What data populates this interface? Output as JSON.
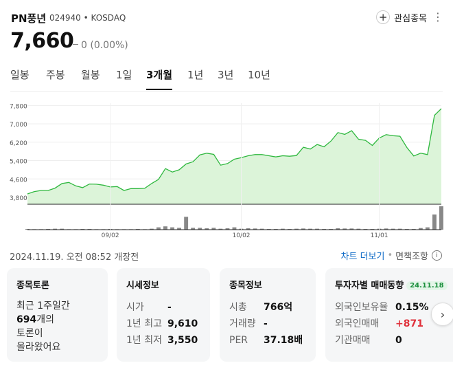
{
  "header": {
    "name": "PN풍년",
    "code_market": "024940 • KOSDAQ",
    "watch_label": "관심종목",
    "price": "7,660",
    "change": "0 (0.00%)"
  },
  "tabs": [
    {
      "label": "일봉"
    },
    {
      "label": "주봉"
    },
    {
      "label": "월봉"
    },
    {
      "label": "1일"
    },
    {
      "label": "3개월",
      "active": true
    },
    {
      "label": "1년"
    },
    {
      "label": "3년"
    },
    {
      "label": "10년"
    }
  ],
  "chart_data": {
    "type": "area",
    "y_ticks": [
      "7,800",
      "7,000",
      "6,200",
      "5,400",
      "4,600",
      "3,800"
    ],
    "x_ticks": [
      "09/02",
      "10/02",
      "11/01"
    ],
    "ylim": [
      3500,
      7900
    ],
    "price": [
      3950,
      4050,
      4100,
      4100,
      4200,
      4400,
      4450,
      4300,
      4220,
      4380,
      4370,
      4330,
      4250,
      4270,
      4100,
      4180,
      4180,
      4190,
      4400,
      4580,
      5050,
      4900,
      5000,
      5250,
      5350,
      5650,
      5720,
      5670,
      5200,
      5270,
      5460,
      5530,
      5610,
      5660,
      5660,
      5610,
      5560,
      5610,
      5590,
      5620,
      5980,
      5900,
      6100,
      6000,
      6250,
      6620,
      6540,
      6700,
      6330,
      6280,
      6060,
      6380,
      6530,
      6480,
      6460,
      5970,
      5600,
      5720,
      5660,
      7370,
      7660
    ],
    "volume": [
      3,
      2,
      2,
      3,
      4,
      4,
      2,
      2,
      3,
      3,
      2,
      2,
      3,
      2,
      2,
      2,
      3,
      2,
      4,
      10,
      14,
      10,
      8,
      55,
      8,
      8,
      6,
      8,
      4,
      6,
      10,
      4,
      6,
      5,
      4,
      3,
      3,
      4,
      3,
      4,
      5,
      4,
      4,
      3,
      3,
      6,
      5,
      5,
      4,
      3,
      3,
      4,
      5,
      4,
      4,
      3,
      3,
      7,
      10,
      65,
      100
    ],
    "colors": {
      "line": "#2fb83f",
      "fill": "#dcf4d9",
      "volume": "#888888"
    }
  },
  "dateline": "2024.11.19. 오전 08:52 개장전",
  "links": {
    "chart_more": "차트 더보기",
    "disclaimer": "면책조항"
  },
  "cards": {
    "discussion": {
      "title": "종목토론",
      "line1": "최근 1주일간",
      "count": "694",
      "line2_suffix": "개의",
      "line3": "토론이",
      "line4": "올라왔어요"
    },
    "quote": {
      "title": "시세정보",
      "rows": [
        {
          "k": "시가",
          "v": "-"
        },
        {
          "k": "1년 최고",
          "v": "9,610"
        },
        {
          "k": "1년 최저",
          "v": "3,550"
        }
      ]
    },
    "info": {
      "title": "종목정보",
      "rows": [
        {
          "k": "시총",
          "v": "766억"
        },
        {
          "k": "거래량",
          "v": "-"
        },
        {
          "k": "PER",
          "v": "37.18배"
        }
      ]
    },
    "investor": {
      "title": "투자자별 매매동향",
      "date": "24.11.18",
      "rows": [
        {
          "k": "외국인보유율",
          "v": "0.15%"
        },
        {
          "k": "외국인매매",
          "v": "+871"
        },
        {
          "k": "기관매매",
          "v": "0"
        }
      ]
    }
  }
}
